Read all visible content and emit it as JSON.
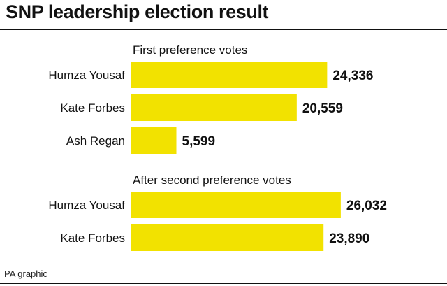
{
  "title": "SNP leadership election result",
  "source": "PA graphic",
  "colors": {
    "bar": "#f2e200",
    "text": "#111111"
  },
  "chart_data": [
    {
      "type": "bar",
      "orientation": "horizontal",
      "section_label": "First preference votes",
      "categories": [
        "Humza Yousaf",
        "Kate Forbes",
        "Ash Regan"
      ],
      "values": [
        24336,
        20559,
        5599
      ],
      "value_labels": [
        "24,336",
        "20,559",
        "5,599"
      ]
    },
    {
      "type": "bar",
      "orientation": "horizontal",
      "section_label": "After second preference votes",
      "categories": [
        "Humza Yousaf",
        "Kate Forbes"
      ],
      "values": [
        26032,
        23890
      ],
      "value_labels": [
        "26,032",
        "23,890"
      ]
    }
  ]
}
